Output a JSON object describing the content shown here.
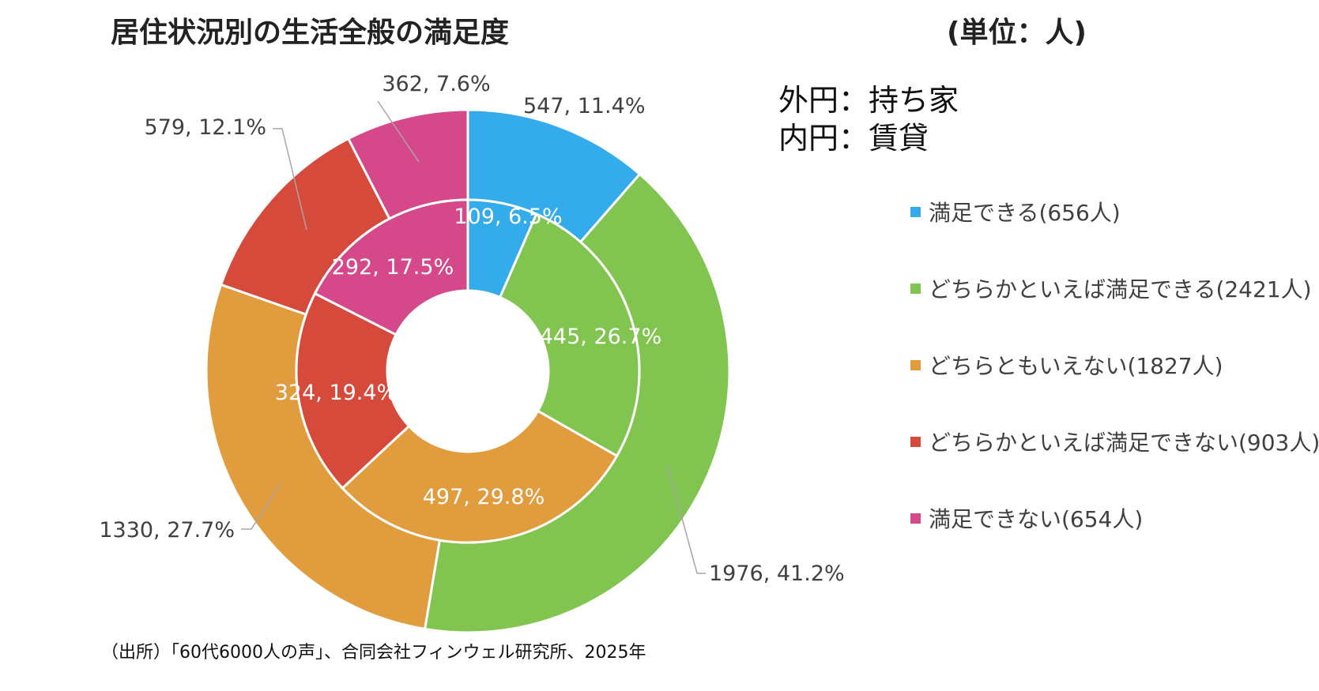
{
  "title": "居住状況別の生活全般の満足度",
  "unit": "(単位：人)",
  "ring_notes": {
    "outer": "外円：持ち家",
    "inner": "内円：賃貸"
  },
  "source": "（出所）「60代6000人の声」、合同会社フィンウェル研究所、2025年",
  "chart_data": {
    "type": "pie",
    "subtype": "double-doughnut",
    "categories": [
      "満足できる",
      "どちらかといえば満足できる",
      "どちらともいえない",
      "どちらかといえば満足できない",
      "満足できない"
    ],
    "colors": [
      "#34ABEB",
      "#82C450",
      "#E19C3E",
      "#D64A3B",
      "#D5488A"
    ],
    "legend": [
      "満足できる(656人)",
      "どちらかといえば満足できる(2421人)",
      "どちらともいえない(1827人)",
      "どちらかといえば満足できない(903人)",
      "満足できない(654人)"
    ],
    "legend_position": "right",
    "series": [
      {
        "ring": "outer",
        "values": [
          547,
          1976,
          1330,
          579,
          362
        ],
        "labels": [
          "547, 11.4%",
          "1976, 41.2%",
          "1330, 27.7%",
          "579, 12.1%",
          "362, 7.6%"
        ]
      },
      {
        "ring": "inner",
        "values": [
          109,
          445,
          497,
          324,
          292
        ],
        "labels": [
          "109, 6.5%",
          "445, 26.7%",
          "497, 29.8%",
          "324, 19.4%",
          "292, 17.5%"
        ]
      }
    ]
  }
}
